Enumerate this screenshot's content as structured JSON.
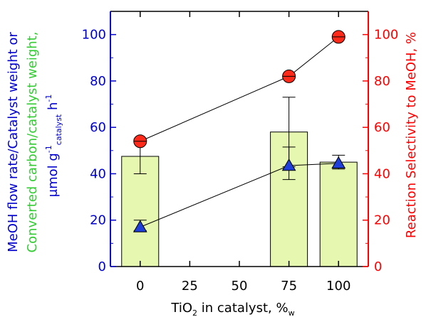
{
  "colors": {
    "left_axis": "#0000cc",
    "right_axis": "#ff0000",
    "green_label": "#33cc33",
    "bar_fill": "#e6f8b0",
    "bar_stroke": "#000000",
    "triangle_fill": "#1f3fd8",
    "circle_fill": "#ff2a1a",
    "line": "#000000"
  },
  "chart_data": {
    "type": "bar",
    "x_label_main": "TiO",
    "x_label_sub": "2",
    "x_label_tail": " in catalyst, %",
    "x_label_unit_sub": "w",
    "categories": [
      "0",
      "25",
      "50",
      "75",
      "100"
    ],
    "x_values": [
      0,
      25,
      50,
      75,
      100
    ],
    "left_axis": {
      "ylim": [
        0,
        110
      ],
      "ticks": [
        0,
        20,
        40,
        60,
        80,
        100
      ],
      "label_line1": "MeOH flow rate/Catalyst weight or",
      "label_line2": "Converted carbon/catalyst weight,",
      "label_line3_pre": "μmol g",
      "label_line3_sup": "-1",
      "label_line3_sub": "catalyst",
      "label_line3_post": " h",
      "label_line3_sup2": "-1"
    },
    "right_axis": {
      "ylim": [
        0,
        110
      ],
      "ticks": [
        0,
        20,
        40,
        60,
        80,
        100
      ],
      "label": "Reaction Selectivity to MeOH, %"
    },
    "series": [
      {
        "kind": "bar",
        "axis": "left",
        "points": [
          {
            "x": 0,
            "y": 47.5,
            "err_low": 40,
            "err_high": 55
          },
          {
            "x": 75,
            "y": 58,
            "err_low": 43,
            "err_high": 73
          },
          {
            "x": 100,
            "y": 45,
            "err_low": 42,
            "err_high": 48
          }
        ]
      },
      {
        "kind": "triangle-line",
        "axis": "left",
        "points": [
          {
            "x": 0,
            "y": 17,
            "err_low": 15.5,
            "err_high": 20
          },
          {
            "x": 75,
            "y": 43.5,
            "err_low": 37.5,
            "err_high": 51.5
          },
          {
            "x": 100,
            "y": 44.5,
            "err_low": 44.5,
            "err_high": 44.5
          }
        ]
      },
      {
        "kind": "circle-line",
        "axis": "right",
        "points": [
          {
            "x": 0,
            "y": 54
          },
          {
            "x": 75,
            "y": 82
          },
          {
            "x": 100,
            "y": 99
          }
        ]
      }
    ]
  }
}
